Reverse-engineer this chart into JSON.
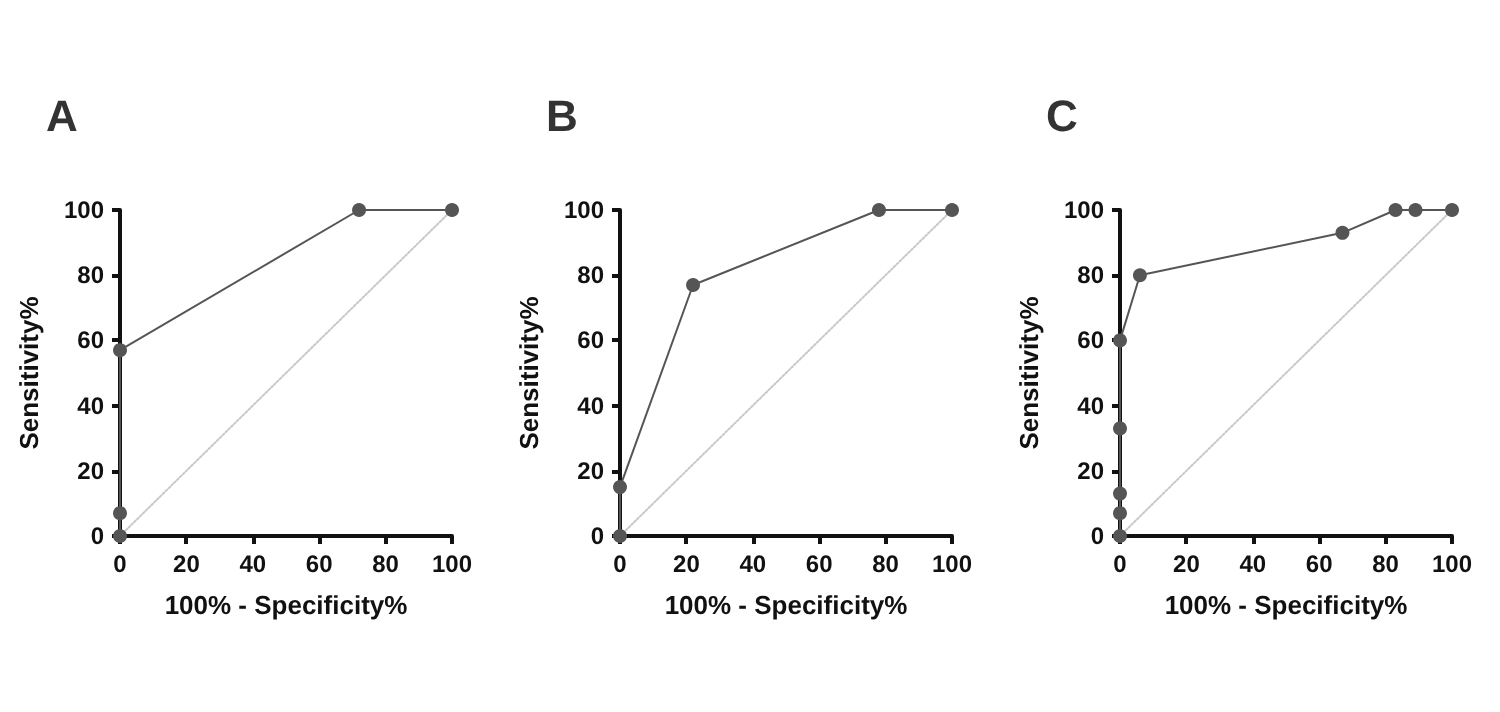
{
  "chart_data": [
    {
      "type": "line",
      "title": "A",
      "xlabel": "100% - Specificity%",
      "ylabel": "Sensitivity%",
      "xlim": [
        0,
        100
      ],
      "xticks": [
        0,
        20,
        40,
        60,
        80,
        100
      ],
      "ylim": [
        0,
        100
      ],
      "yticks": [
        0,
        20,
        40,
        60,
        80,
        100
      ],
      "grid": false,
      "series": [
        {
          "x": [
            0,
            0,
            0,
            72,
            100
          ],
          "values": [
            0,
            7,
            57,
            100,
            100
          ],
          "color": "#555555",
          "marker": "circle",
          "line_style": "solid"
        },
        {
          "x": [
            0,
            100
          ],
          "values": [
            0,
            100
          ],
          "color": "#c8c8c8",
          "marker": "none",
          "line_style": "dotted"
        }
      ]
    },
    {
      "type": "line",
      "title": "B",
      "xlabel": "100% - Specificity%",
      "ylabel": "Sensitivity%",
      "xlim": [
        0,
        100
      ],
      "xticks": [
        0,
        20,
        40,
        60,
        80,
        100
      ],
      "ylim": [
        0,
        100
      ],
      "yticks": [
        0,
        20,
        40,
        60,
        80,
        100
      ],
      "grid": false,
      "series": [
        {
          "x": [
            0,
            0,
            22,
            78,
            100
          ],
          "values": [
            0,
            15,
            77,
            100,
            100
          ],
          "color": "#555555",
          "marker": "circle",
          "line_style": "solid"
        },
        {
          "x": [
            0,
            100
          ],
          "values": [
            0,
            100
          ],
          "color": "#c8c8c8",
          "marker": "none",
          "line_style": "dotted"
        }
      ]
    },
    {
      "type": "line",
      "title": "C",
      "xlabel": "100% - Specificity%",
      "ylabel": "Sensitivity%",
      "xlim": [
        0,
        100
      ],
      "xticks": [
        0,
        20,
        40,
        60,
        80,
        100
      ],
      "ylim": [
        0,
        100
      ],
      "yticks": [
        0,
        20,
        40,
        60,
        80,
        100
      ],
      "grid": false,
      "series": [
        {
          "x": [
            0,
            0,
            0,
            0,
            0,
            6,
            67,
            83,
            89,
            100
          ],
          "values": [
            0,
            7,
            13,
            33,
            60,
            80,
            93,
            100,
            100,
            100
          ],
          "color": "#555555",
          "marker": "circle",
          "line_style": "solid"
        },
        {
          "x": [
            0,
            100
          ],
          "values": [
            0,
            100
          ],
          "color": "#c8c8c8",
          "marker": "none",
          "line_style": "dotted"
        }
      ]
    }
  ]
}
